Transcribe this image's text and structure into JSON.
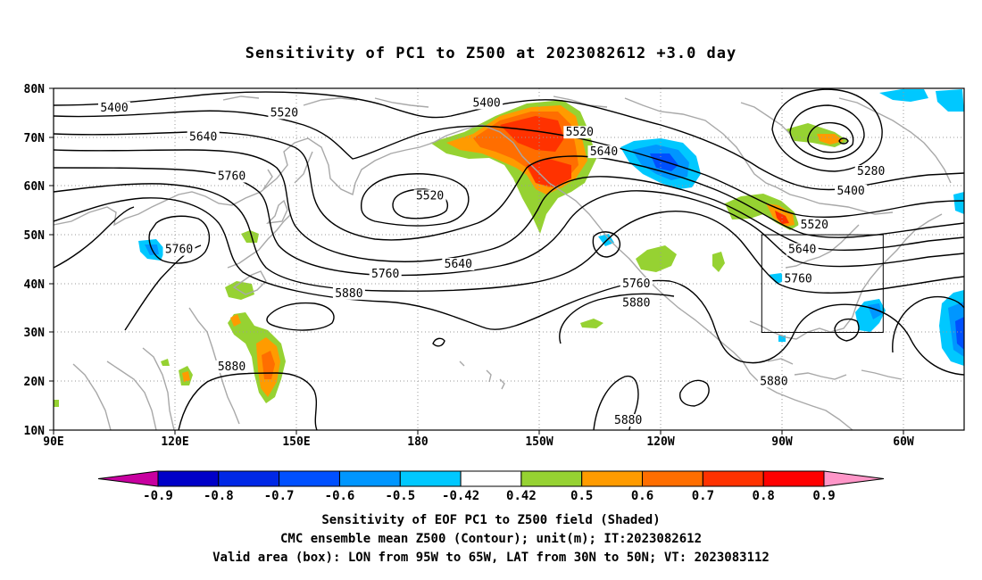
{
  "title": "Sensitivity of PC1 to Z500 at 2023082612 +3.0 day",
  "map": {
    "lat_labels": [
      "80N",
      "70N",
      "60N",
      "50N",
      "40N",
      "30N",
      "20N",
      "10N"
    ],
    "lon_labels": [
      "90E",
      "120E",
      "150E",
      "180",
      "150W",
      "120W",
      "90W",
      "60W"
    ],
    "contour_labels": [
      {
        "text": "5400",
        "lon": 105,
        "lat": 76
      },
      {
        "text": "5520",
        "lon": 147,
        "lat": 75
      },
      {
        "text": "5640",
        "lon": 127,
        "lat": 70
      },
      {
        "text": "5760",
        "lon": 134,
        "lat": 62
      },
      {
        "text": "5760",
        "lon": 121,
        "lat": 47
      },
      {
        "text": "5880",
        "lon": 134,
        "lat": 23
      },
      {
        "text": "5880",
        "lon": 163,
        "lat": 38
      },
      {
        "text": "5760",
        "lon": 172,
        "lat": 42
      },
      {
        "text": "5640",
        "lon": -170,
        "lat": 44
      },
      {
        "text": "5520",
        "lon": -177,
        "lat": 58
      },
      {
        "text": "5400",
        "lon": -163,
        "lat": 77
      },
      {
        "text": "5520",
        "lon": -140,
        "lat": 71
      },
      {
        "text": "5640",
        "lon": -134,
        "lat": 67
      },
      {
        "text": "5760",
        "lon": -126,
        "lat": 40
      },
      {
        "text": "5880",
        "lon": -126,
        "lat": 36
      },
      {
        "text": "5880",
        "lon": -128,
        "lat": 12
      },
      {
        "text": "5880",
        "lon": -92,
        "lat": 20
      },
      {
        "text": "5280",
        "lon": -68,
        "lat": 63
      },
      {
        "text": "5400",
        "lon": -73,
        "lat": 59
      },
      {
        "text": "5520",
        "lon": -82,
        "lat": 52
      },
      {
        "text": "5640",
        "lon": -85,
        "lat": 47
      },
      {
        "text": "5760",
        "lon": -86,
        "lat": 41
      }
    ],
    "valid_box": {
      "lon_w": -95,
      "lon_e": -65,
      "lat_s": 30,
      "lat_n": 50
    }
  },
  "colorbar": {
    "labels": [
      "-0.9",
      "-0.8",
      "-0.7",
      "-0.6",
      "-0.5",
      "-0.42",
      "0.42",
      "0.5",
      "0.6",
      "0.7",
      "0.8",
      "0.9"
    ],
    "colors": [
      "#c800a0",
      "#0000c8",
      "#0028e6",
      "#0050ff",
      "#0096ff",
      "#00c8ff",
      "#ffffff",
      "#96d232",
      "#ff9b00",
      "#ff6e00",
      "#ff3200",
      "#ff0000",
      "#ff96c8"
    ]
  },
  "captions": {
    "line1": "Sensitivity of EOF PC1 to Z500 field (Shaded)",
    "line2": "CMC ensemble mean Z500 (Contour); unit(m); IT:2023082612",
    "line3": "Valid area (box): LON from 95W to 65W, LAT from 30N to 50N; VT: 2023083112"
  }
}
